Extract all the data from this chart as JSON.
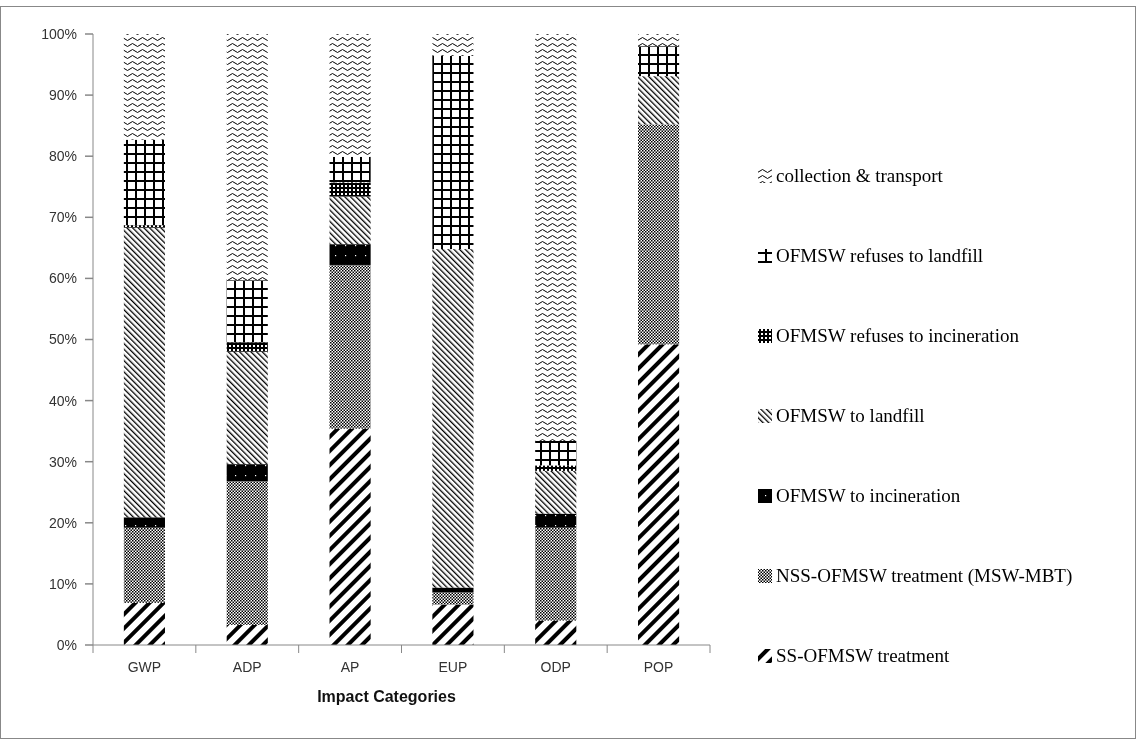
{
  "chart_data": {
    "type": "bar",
    "stacked": true,
    "xlabel": "Impact Categories",
    "categories": [
      "GWP",
      "ADP",
      "AP",
      "EUP",
      "ODP",
      "POP"
    ],
    "series": [
      {
        "name": "SS-OFMSW treatment",
        "color": "#000000",
        "values": [
          6.9,
          3.3,
          35.4,
          6.6,
          4.0,
          49.2
        ]
      },
      {
        "name": "NSS-OFMSW treatment (MSW-MBT)",
        "color": "#000000",
        "values": [
          12.3,
          23.5,
          26.8,
          2.0,
          15.2,
          36.0
        ]
      },
      {
        "name": "OFMSW to incineration",
        "color": "#000000",
        "values": [
          1.7,
          2.8,
          3.4,
          0.8,
          2.3,
          0
        ]
      },
      {
        "name": "OFMSW to landfill",
        "color": "#000000",
        "values": [
          47.4,
          18.4,
          7.8,
          55.4,
          7.0,
          7.9
        ]
      },
      {
        "name": "OFMSW refuses to incineration",
        "color": "#000000",
        "values": [
          0.4,
          1.5,
          2.3,
          0,
          0.9,
          0
        ]
      },
      {
        "name": "OFMSW refuses to landfill",
        "color": "#000000",
        "values": [
          14.0,
          10.2,
          4.2,
          31.6,
          4.0,
          4.9
        ]
      },
      {
        "name": "collection & transport",
        "color": "#000000",
        "values": [
          17.3,
          40.3,
          20.1,
          3.6,
          66.6,
          2.0
        ]
      }
    ],
    "ylim": [
      0,
      100
    ],
    "yticks": [
      {
        "value": 0,
        "label": "0%"
      },
      {
        "value": 10,
        "label": "10%"
      },
      {
        "value": 20,
        "label": "20%"
      },
      {
        "value": 30,
        "label": "30%"
      },
      {
        "value": 40,
        "label": "40%"
      },
      {
        "value": 50,
        "label": "50%"
      },
      {
        "value": 60,
        "label": "60%"
      },
      {
        "value": 70,
        "label": "70%"
      },
      {
        "value": 80,
        "label": "80%"
      },
      {
        "value": 90,
        "label": "90%"
      },
      {
        "value": 100,
        "label": "100%"
      }
    ],
    "grid": false,
    "legend": "right"
  }
}
